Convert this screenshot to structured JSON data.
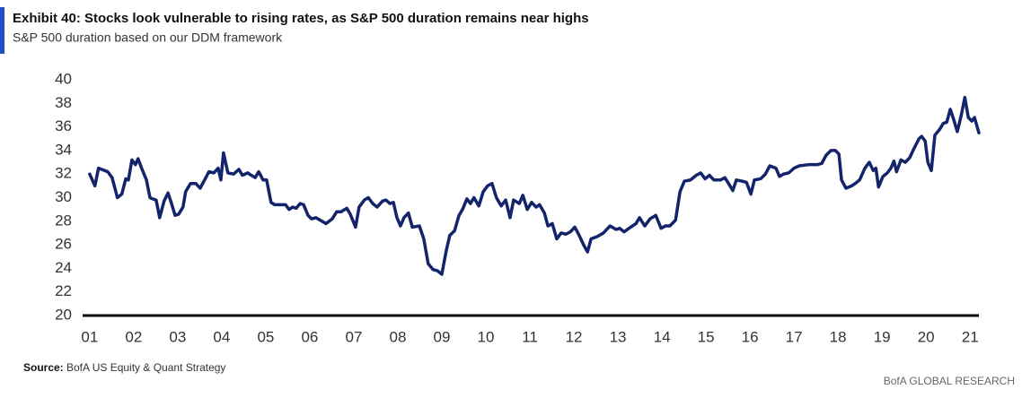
{
  "chart_data": {
    "type": "line",
    "title": "Exhibit 40: Stocks look vulnerable to rising rates, as S&P 500 duration remains near highs",
    "subtitle": "S&P 500 duration  based on our DDM framework",
    "source_label": "Source:",
    "source": "BofA US Equity & Quant Strategy",
    "footer": "BofA GLOBAL RESEARCH",
    "xlim": [
      0.84,
      21.2
    ],
    "ylim": [
      20,
      40
    ],
    "yticks": [
      20,
      22,
      24,
      26,
      28,
      30,
      32,
      34,
      36,
      38,
      40
    ],
    "xticks": [
      {
        "value": 1,
        "label": "01"
      },
      {
        "value": 2,
        "label": "02"
      },
      {
        "value": 3,
        "label": "03"
      },
      {
        "value": 4,
        "label": "04"
      },
      {
        "value": 5,
        "label": "05"
      },
      {
        "value": 6,
        "label": "06"
      },
      {
        "value": 7,
        "label": "07"
      },
      {
        "value": 8,
        "label": "08"
      },
      {
        "value": 9,
        "label": "09"
      },
      {
        "value": 10,
        "label": "10"
      },
      {
        "value": 11,
        "label": "11"
      },
      {
        "value": 12,
        "label": "12"
      },
      {
        "value": 13,
        "label": "13"
      },
      {
        "value": 14,
        "label": "14"
      },
      {
        "value": 15,
        "label": "15"
      },
      {
        "value": 16,
        "label": "16"
      },
      {
        "value": 17,
        "label": "17"
      },
      {
        "value": 18,
        "label": "18"
      },
      {
        "value": 19,
        "label": "19"
      },
      {
        "value": 20,
        "label": "20"
      },
      {
        "value": 21,
        "label": "21"
      }
    ],
    "x": [
      1.0,
      1.12,
      1.2,
      1.41,
      1.51,
      1.63,
      1.73,
      1.82,
      1.88,
      1.96,
      2.04,
      2.1,
      2.18,
      2.29,
      2.37,
      2.43,
      2.51,
      2.59,
      2.69,
      2.78,
      2.86,
      2.94,
      3.02,
      3.12,
      3.18,
      3.29,
      3.41,
      3.51,
      3.61,
      3.71,
      3.82,
      3.92,
      3.98,
      4.04,
      4.14,
      4.27,
      4.39,
      4.47,
      4.59,
      4.67,
      4.76,
      4.84,
      4.94,
      5.02,
      5.12,
      5.2,
      5.45,
      5.53,
      5.61,
      5.69,
      5.78,
      5.86,
      5.96,
      6.04,
      6.14,
      6.37,
      6.51,
      6.61,
      6.71,
      6.84,
      6.92,
      7.04,
      7.12,
      7.24,
      7.33,
      7.43,
      7.53,
      7.65,
      7.73,
      7.82,
      7.9,
      7.98,
      8.06,
      8.14,
      8.24,
      8.33,
      8.49,
      8.59,
      8.69,
      8.8,
      8.9,
      9.0,
      9.1,
      9.18,
      9.29,
      9.39,
      9.47,
      9.57,
      9.65,
      9.73,
      9.84,
      9.94,
      10.04,
      10.14,
      10.24,
      10.35,
      10.45,
      10.55,
      10.63,
      10.76,
      10.84,
      10.94,
      11.04,
      11.14,
      11.22,
      11.33,
      11.41,
      11.51,
      11.61,
      11.71,
      11.82,
      11.92,
      12.02,
      12.12,
      12.22,
      12.31,
      12.39,
      12.53,
      12.67,
      12.82,
      12.96,
      13.04,
      13.14,
      13.29,
      13.41,
      13.49,
      13.61,
      13.73,
      13.86,
      13.98,
      14.08,
      14.18,
      14.31,
      14.41,
      14.51,
      14.65,
      14.78,
      14.88,
      14.98,
      15.08,
      15.18,
      15.33,
      15.43,
      15.53,
      15.61,
      15.69,
      15.82,
      15.92,
      16.02,
      16.1,
      16.24,
      16.35,
      16.45,
      16.59,
      16.67,
      16.76,
      16.88,
      17.0,
      17.12,
      17.33,
      17.53,
      17.63,
      17.73,
      17.84,
      17.94,
      18.02,
      18.08,
      18.18,
      18.31,
      18.39,
      18.49,
      18.61,
      18.71,
      18.8,
      18.86,
      18.92,
      19.02,
      19.12,
      19.2,
      19.27,
      19.33,
      19.43,
      19.53,
      19.63,
      19.73,
      19.84,
      19.9,
      19.98,
      20.04,
      20.12,
      20.2,
      20.31,
      20.39,
      20.47,
      20.55,
      20.63,
      20.71,
      20.8,
      20.88,
      20.96,
      21.04,
      21.1,
      21.2
    ],
    "series": [
      {
        "name": "S&P 500 duration",
        "color": "#13246b",
        "values": [
          32.0,
          31.0,
          32.5,
          32.2,
          31.7,
          30.0,
          30.3,
          31.6,
          31.5,
          33.2,
          32.8,
          33.3,
          32.5,
          31.5,
          30.0,
          29.9,
          29.8,
          28.3,
          29.7,
          30.4,
          29.5,
          28.5,
          28.6,
          29.2,
          30.5,
          31.2,
          31.2,
          30.8,
          31.5,
          32.2,
          32.1,
          32.5,
          31.5,
          33.8,
          32.1,
          32.0,
          32.4,
          31.9,
          32.1,
          31.9,
          31.7,
          32.2,
          31.5,
          31.5,
          29.6,
          29.4,
          29.4,
          29.0,
          29.2,
          29.1,
          29.5,
          29.4,
          28.5,
          28.2,
          28.3,
          27.8,
          28.2,
          28.8,
          28.8,
          29.1,
          28.6,
          27.5,
          29.2,
          29.8,
          30.0,
          29.5,
          29.2,
          29.7,
          29.8,
          29.5,
          29.6,
          28.3,
          27.6,
          28.3,
          28.7,
          27.5,
          27.6,
          26.5,
          24.4,
          23.9,
          23.8,
          23.5,
          25.5,
          26.8,
          27.2,
          28.5,
          29.0,
          29.9,
          29.5,
          30.0,
          29.3,
          30.5,
          31.0,
          31.2,
          30.0,
          29.3,
          29.8,
          28.3,
          29.8,
          29.5,
          30.2,
          29.0,
          29.6,
          29.2,
          29.4,
          28.7,
          27.6,
          27.8,
          26.5,
          27.0,
          26.9,
          27.1,
          27.5,
          26.8,
          26.0,
          25.4,
          26.5,
          26.7,
          27.0,
          27.6,
          27.3,
          27.4,
          27.1,
          27.5,
          27.8,
          28.3,
          27.6,
          28.2,
          28.5,
          27.4,
          27.6,
          27.6,
          28.1,
          30.5,
          31.4,
          31.5,
          31.9,
          32.1,
          31.6,
          31.9,
          31.5,
          31.5,
          31.7,
          31.1,
          30.6,
          31.5,
          31.4,
          31.3,
          30.3,
          31.5,
          31.6,
          32.0,
          32.7,
          32.5,
          31.8,
          32.0,
          32.1,
          32.5,
          32.7,
          32.8,
          32.8,
          32.9,
          33.6,
          34.0,
          34.0,
          33.7,
          31.5,
          30.8,
          31.0,
          31.2,
          31.5,
          32.5,
          33.0,
          32.3,
          32.5,
          30.9,
          31.8,
          32.1,
          32.5,
          33.1,
          32.2,
          33.2,
          33.0,
          33.4,
          34.2,
          35.0,
          35.2,
          34.8,
          33.0,
          32.3,
          35.3,
          35.8,
          36.3,
          36.4,
          37.5,
          36.6,
          35.6,
          37.0,
          38.5,
          36.8,
          36.5,
          36.8,
          35.5
        ]
      }
    ]
  }
}
